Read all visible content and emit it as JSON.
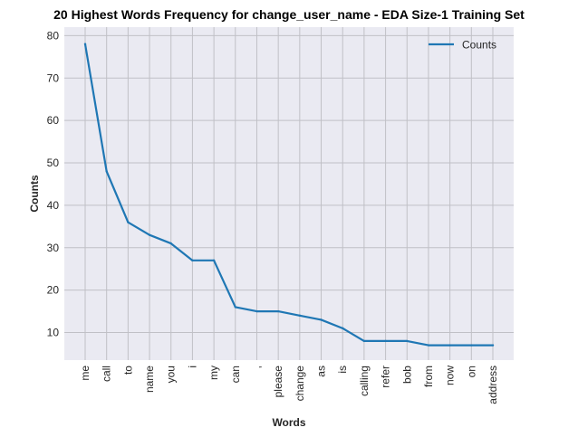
{
  "colors": {
    "plot_background": "#eaeaf2",
    "grid": "#c0c0c6",
    "line": "#1f77b4"
  },
  "chart_data": {
    "type": "line",
    "title": "20 Highest Words Frequency for change_user_name - EDA Size-1 Training Set",
    "xlabel": "Words",
    "ylabel": "Counts",
    "categories": [
      "me",
      "call",
      "to",
      "name",
      "you",
      "i",
      "my",
      "can",
      ",",
      "please",
      "change",
      "as",
      "is",
      "calling",
      "refer",
      "bob",
      "from",
      "now",
      "on",
      "address"
    ],
    "series": [
      {
        "name": "Counts",
        "values": [
          78,
          48,
          36,
          33,
          31,
          27,
          27,
          16,
          15,
          15,
          14,
          13,
          11,
          8,
          8,
          8,
          7,
          7,
          7,
          7
        ]
      }
    ],
    "ylim": [
      3.5,
      82
    ],
    "yticks": [
      10,
      20,
      30,
      40,
      50,
      60,
      70,
      80
    ],
    "grid": true,
    "legend_position": "top-right"
  }
}
